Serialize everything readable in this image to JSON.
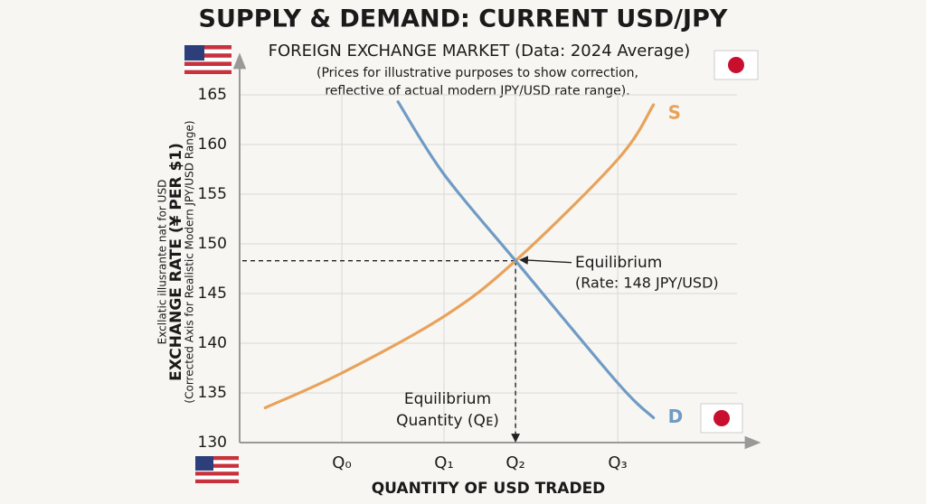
{
  "chart_data": {
    "type": "line",
    "title": "SUPPLY & DEMAND: CURRENT USD/JPY",
    "subtitle": "FOREIGN EXCHANGE MARKET (Data: 2024 Average)",
    "notes": [
      "(Prices for illustrative purposes to show correction,",
      "reflective of actual modern JPY/USD rate range)."
    ],
    "y_label": [
      "Excllatic illusrante nat for USD",
      "EXCHANGE RATE (¥ PER $1)",
      "(Corrected Axis for Realistic Modern JPY/USD Range)"
    ],
    "x_label": "QUANTITY OF USD TRADED",
    "xlim": [
      0,
      10
    ],
    "xticks": [
      {
        "value": 2,
        "label": "Q₀"
      },
      {
        "value": 4,
        "label": "Q₁"
      },
      {
        "value": 5.4,
        "label": "Q₂"
      },
      {
        "value": 7.4,
        "label": "Q₃"
      }
    ],
    "ylim": [
      130,
      168
    ],
    "yticks": [
      130,
      135,
      140,
      145,
      150,
      155,
      160,
      165
    ],
    "grid": true,
    "series": [
      {
        "name": "S",
        "color": "#e8a25a",
        "x": [
          0.5,
          2,
          4,
          5.4,
          7.4,
          8.1
        ],
        "values": [
          133.5,
          137,
          142.7,
          148.3,
          158.5,
          164
        ]
      },
      {
        "name": "D",
        "color": "#6f9bc4",
        "x": [
          3.1,
          4,
          5.4,
          7.4,
          8.1
        ],
        "values": [
          164.3,
          157,
          148.3,
          136,
          132.5
        ]
      }
    ],
    "equilibrium": {
      "x": 5.4,
      "y": 148.3
    },
    "annotations": {
      "rate": [
        "Equilibrium",
        "(Rate: 148 JPY/USD)"
      ],
      "quantity": [
        "Equilibrium",
        "Quantity (Qᴇ)"
      ]
    }
  }
}
